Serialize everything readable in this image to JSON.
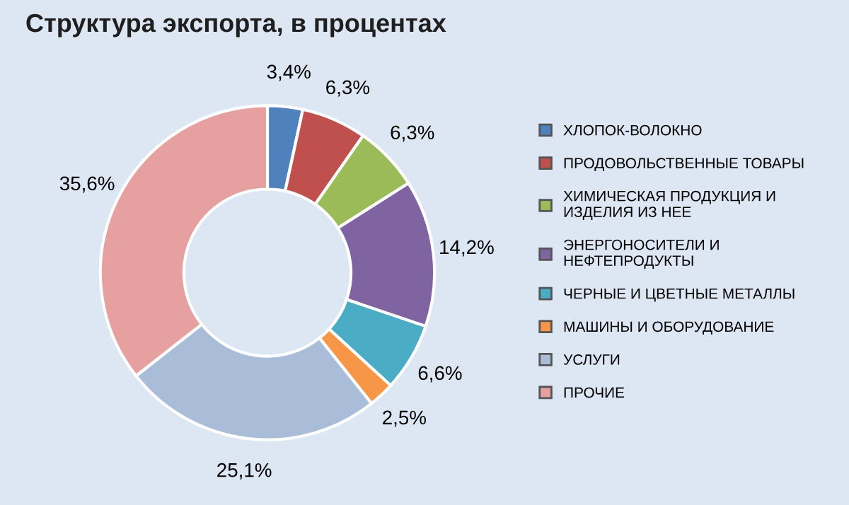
{
  "chart_data": {
    "type": "donut",
    "title": "Структура экспорта, в процентах",
    "categories": [
      "ХЛОПОК-ВОЛОКНО",
      "ПРОДОВОЛЬСТВЕННЫЕ ТОВАРЫ",
      "ХИМИЧЕСКАЯ ПРОДУКЦИЯ И\nИЗДЕЛИЯ ИЗ НЕЕ",
      "ЭНЕРГОНОСИТЕЛИ И\nНЕФТЕПРОДУКТЫ",
      "ЧЕРНЫЕ И ЦВЕТНЫЕ МЕТАЛЛЫ",
      "МАШИНЫ И ОБОРУДОВАНИЕ",
      "УСЛУГИ",
      "ПРОЧИЕ"
    ],
    "values": [
      3.4,
      6.3,
      6.3,
      14.2,
      6.6,
      2.5,
      25.1,
      35.6
    ],
    "value_labels": [
      "3,4%",
      "6,3%",
      "6,3%",
      "14,2%",
      "6,6%",
      "2,5%",
      "25,1%",
      "35,6%"
    ],
    "colors": [
      "#4f81bd",
      "#c0504d",
      "#9bbb59",
      "#8064a2",
      "#4bacc6",
      "#f79646",
      "#a9bcd8",
      "#e6a0a0"
    ],
    "legend": "right"
  }
}
